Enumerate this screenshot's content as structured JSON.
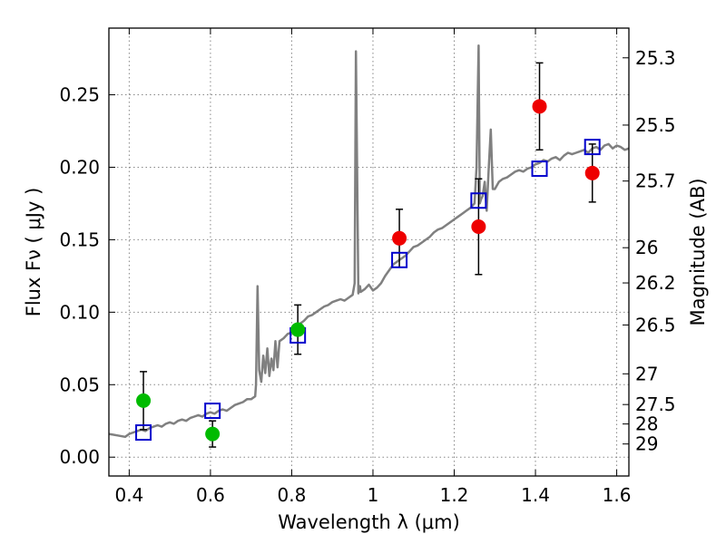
{
  "chart_data": {
    "type": "scatter",
    "xlabel": "Wavelength  λ (μm)",
    "ylabel": "Flux  Fν  ( μJy )",
    "ylabel_right": "Magnitude (AB)",
    "xlim": [
      0.35,
      1.63
    ],
    "ylim": [
      -0.013,
      0.296
    ],
    "grid": true,
    "x_ticks": [
      {
        "value": 0.4,
        "label": "0.4"
      },
      {
        "value": 0.6,
        "label": "0.6"
      },
      {
        "value": 0.8,
        "label": "0.8"
      },
      {
        "value": 1.0,
        "label": "1"
      },
      {
        "value": 1.2,
        "label": "1.2"
      },
      {
        "value": 1.4,
        "label": "1.4"
      },
      {
        "value": 1.6,
        "label": "1.6"
      }
    ],
    "y_ticks": [
      {
        "value": 0.0,
        "label": "0.00"
      },
      {
        "value": 0.05,
        "label": "0.05"
      },
      {
        "value": 0.1,
        "label": "0.10"
      },
      {
        "value": 0.15,
        "label": "0.15"
      },
      {
        "value": 0.2,
        "label": "0.20"
      },
      {
        "value": 0.25,
        "label": "0.25"
      }
    ],
    "right_ticks": [
      {
        "flux": 0.2755,
        "label": "25.3"
      },
      {
        "flux": 0.2291,
        "label": "25.5"
      },
      {
        "flux": 0.1905,
        "label": "25.7"
      },
      {
        "flux": 0.1445,
        "label": "26"
      },
      {
        "flux": 0.1202,
        "label": "26.2"
      },
      {
        "flux": 0.0912,
        "label": "26.5"
      },
      {
        "flux": 0.0575,
        "label": "27"
      },
      {
        "flux": 0.0363,
        "label": "27.5"
      },
      {
        "flux": 0.0229,
        "label": "28"
      },
      {
        "flux": 0.0091,
        "label": "29"
      }
    ],
    "colors": {
      "spectrum": "#808080",
      "model": "#0000cc",
      "green": "#00bb00",
      "red": "#ee0000",
      "errorbar": "#000000",
      "grid": "#888888"
    },
    "series": [
      {
        "type": "line",
        "role": "spectrum",
        "x": [
          0.35,
          0.37,
          0.39,
          0.4,
          0.41,
          0.42,
          0.43,
          0.44,
          0.45,
          0.46,
          0.47,
          0.48,
          0.49,
          0.5,
          0.51,
          0.52,
          0.53,
          0.54,
          0.55,
          0.56,
          0.57,
          0.58,
          0.59,
          0.6,
          0.61,
          0.62,
          0.63,
          0.64,
          0.65,
          0.66,
          0.67,
          0.68,
          0.69,
          0.7,
          0.71,
          0.712,
          0.716,
          0.72,
          0.725,
          0.73,
          0.735,
          0.74,
          0.745,
          0.75,
          0.755,
          0.76,
          0.765,
          0.77,
          0.78,
          0.79,
          0.8,
          0.81,
          0.82,
          0.83,
          0.84,
          0.85,
          0.86,
          0.87,
          0.88,
          0.89,
          0.9,
          0.91,
          0.92,
          0.93,
          0.94,
          0.95,
          0.955,
          0.958,
          0.961,
          0.964,
          0.968,
          0.97,
          0.98,
          0.99,
          1.0,
          1.01,
          1.02,
          1.03,
          1.04,
          1.05,
          1.06,
          1.07,
          1.08,
          1.09,
          1.1,
          1.11,
          1.12,
          1.13,
          1.14,
          1.15,
          1.16,
          1.17,
          1.18,
          1.19,
          1.2,
          1.21,
          1.22,
          1.23,
          1.24,
          1.25,
          1.255,
          1.26,
          1.263,
          1.266,
          1.27,
          1.275,
          1.28,
          1.285,
          1.29,
          1.295,
          1.3,
          1.31,
          1.32,
          1.33,
          1.34,
          1.35,
          1.36,
          1.37,
          1.38,
          1.39,
          1.4,
          1.41,
          1.42,
          1.43,
          1.44,
          1.45,
          1.46,
          1.47,
          1.48,
          1.49,
          1.5,
          1.51,
          1.52,
          1.53,
          1.54,
          1.55,
          1.56,
          1.57,
          1.58,
          1.59,
          1.6,
          1.61,
          1.62,
          1.63
        ],
        "y": [
          0.016,
          0.015,
          0.014,
          0.016,
          0.017,
          0.018,
          0.019,
          0.018,
          0.02,
          0.021,
          0.022,
          0.021,
          0.023,
          0.024,
          0.023,
          0.025,
          0.026,
          0.025,
          0.027,
          0.028,
          0.029,
          0.028,
          0.03,
          0.031,
          0.03,
          0.032,
          0.033,
          0.032,
          0.034,
          0.036,
          0.037,
          0.038,
          0.04,
          0.04,
          0.042,
          0.05,
          0.118,
          0.06,
          0.052,
          0.07,
          0.058,
          0.075,
          0.056,
          0.068,
          0.06,
          0.08,
          0.062,
          0.08,
          0.082,
          0.085,
          0.086,
          0.089,
          0.092,
          0.094,
          0.097,
          0.098,
          0.1,
          0.102,
          0.104,
          0.105,
          0.107,
          0.108,
          0.109,
          0.108,
          0.11,
          0.112,
          0.12,
          0.28,
          0.2,
          0.113,
          0.118,
          0.114,
          0.116,
          0.119,
          0.115,
          0.117,
          0.12,
          0.125,
          0.129,
          0.133,
          0.135,
          0.137,
          0.139,
          0.142,
          0.145,
          0.146,
          0.148,
          0.15,
          0.152,
          0.155,
          0.157,
          0.158,
          0.16,
          0.162,
          0.164,
          0.166,
          0.168,
          0.17,
          0.172,
          0.175,
          0.2,
          0.284,
          0.175,
          0.178,
          0.18,
          0.19,
          0.17,
          0.2,
          0.226,
          0.185,
          0.185,
          0.19,
          0.192,
          0.193,
          0.195,
          0.197,
          0.198,
          0.197,
          0.199,
          0.2,
          0.202,
          0.203,
          0.205,
          0.204,
          0.206,
          0.207,
          0.205,
          0.208,
          0.21,
          0.209,
          0.21,
          0.211,
          0.212,
          0.21,
          0.213,
          0.214,
          0.212,
          0.215,
          0.216,
          0.213,
          0.215,
          0.214,
          0.212,
          0.213
        ]
      },
      {
        "type": "scatter",
        "role": "model",
        "marker": "square",
        "x": [
          0.435,
          0.605,
          0.815,
          1.065,
          1.26,
          1.41,
          1.54
        ],
        "y": [
          0.017,
          0.032,
          0.084,
          0.136,
          0.177,
          0.199,
          0.214
        ]
      },
      {
        "type": "scatter",
        "role": "green",
        "marker": "circle",
        "x": [
          0.435,
          0.605,
          0.815
        ],
        "y": [
          0.039,
          0.016,
          0.088
        ],
        "yerr": [
          0.02,
          0.009,
          0.017
        ]
      },
      {
        "type": "scatter",
        "role": "red",
        "marker": "circle",
        "x": [
          1.065,
          1.26,
          1.41,
          1.54
        ],
        "y": [
          0.151,
          0.159,
          0.242,
          0.196
        ],
        "yerr": [
          0.02,
          0.033,
          0.03,
          0.02
        ]
      }
    ]
  }
}
